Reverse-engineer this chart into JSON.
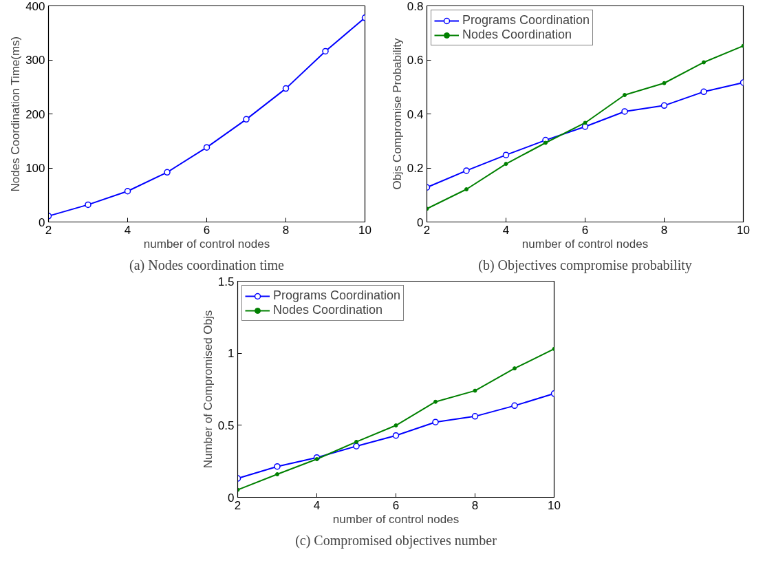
{
  "chart_data": [
    {
      "type": "line",
      "title": "(a) Nodes coordination time",
      "xlabel": "number of control nodes",
      "ylabel": "Nodes Coordination Time(ms)",
      "x": [
        2,
        3,
        4,
        5,
        6,
        7,
        8,
        9,
        10
      ],
      "xlim": [
        2,
        10
      ],
      "xticks": [
        2,
        4,
        6,
        8,
        10
      ],
      "ylim": [
        0,
        400
      ],
      "yticks": [
        0,
        100,
        200,
        300,
        400
      ],
      "grid": false,
      "legend": false,
      "line_style": "solid",
      "series": [
        {
          "color": "#0000ff",
          "marker": "circle",
          "values": [
            11,
            32,
            57,
            92,
            138,
            190,
            247,
            316,
            378
          ]
        }
      ]
    },
    {
      "type": "line",
      "title": "(b) Objectives compromise probability",
      "xlabel": "number of control nodes",
      "ylabel": "Objs Compromise Probability",
      "x": [
        2,
        3,
        4,
        5,
        6,
        7,
        8,
        9,
        10
      ],
      "xlim": [
        2,
        10
      ],
      "xticks": [
        2,
        4,
        6,
        8,
        10
      ],
      "ylim": [
        0,
        0.8
      ],
      "yticks": [
        0,
        0.2,
        0.4,
        0.6,
        0.8
      ],
      "grid": false,
      "legend": "top left",
      "line_style": "solid",
      "series": [
        {
          "name": "Programs Coordination",
          "color": "#0000ff",
          "marker": "circle",
          "values": [
            0.128,
            0.19,
            0.248,
            0.303,
            0.353,
            0.409,
            0.431,
            0.482,
            0.516
          ]
        },
        {
          "name": "Nodes Coordination",
          "color": "#008000",
          "marker": "dot",
          "values": [
            0.049,
            0.121,
            0.215,
            0.293,
            0.367,
            0.47,
            0.514,
            0.591,
            0.652
          ]
        }
      ]
    },
    {
      "type": "line",
      "title": "(c) Compromised objectives number",
      "xlabel": "number of control nodes",
      "ylabel": "Number of Compromised Objs",
      "x": [
        2,
        3,
        4,
        5,
        6,
        7,
        8,
        9,
        10
      ],
      "xlim": [
        2,
        10
      ],
      "xticks": [
        2,
        4,
        6,
        8,
        10
      ],
      "ylim": [
        0,
        1.5
      ],
      "yticks": [
        0,
        0.5,
        1,
        1.5
      ],
      "grid": false,
      "legend": "top left",
      "line_style": "solid",
      "series": [
        {
          "name": "Programs Coordination",
          "color": "#0000ff",
          "marker": "circle",
          "values": [
            0.131,
            0.214,
            0.276,
            0.355,
            0.429,
            0.522,
            0.562,
            0.636,
            0.72
          ]
        },
        {
          "name": "Nodes Coordination",
          "color": "#008000",
          "marker": "dot",
          "values": [
            0.052,
            0.16,
            0.265,
            0.385,
            0.499,
            0.663,
            0.74,
            0.895,
            1.03
          ]
        }
      ]
    }
  ]
}
